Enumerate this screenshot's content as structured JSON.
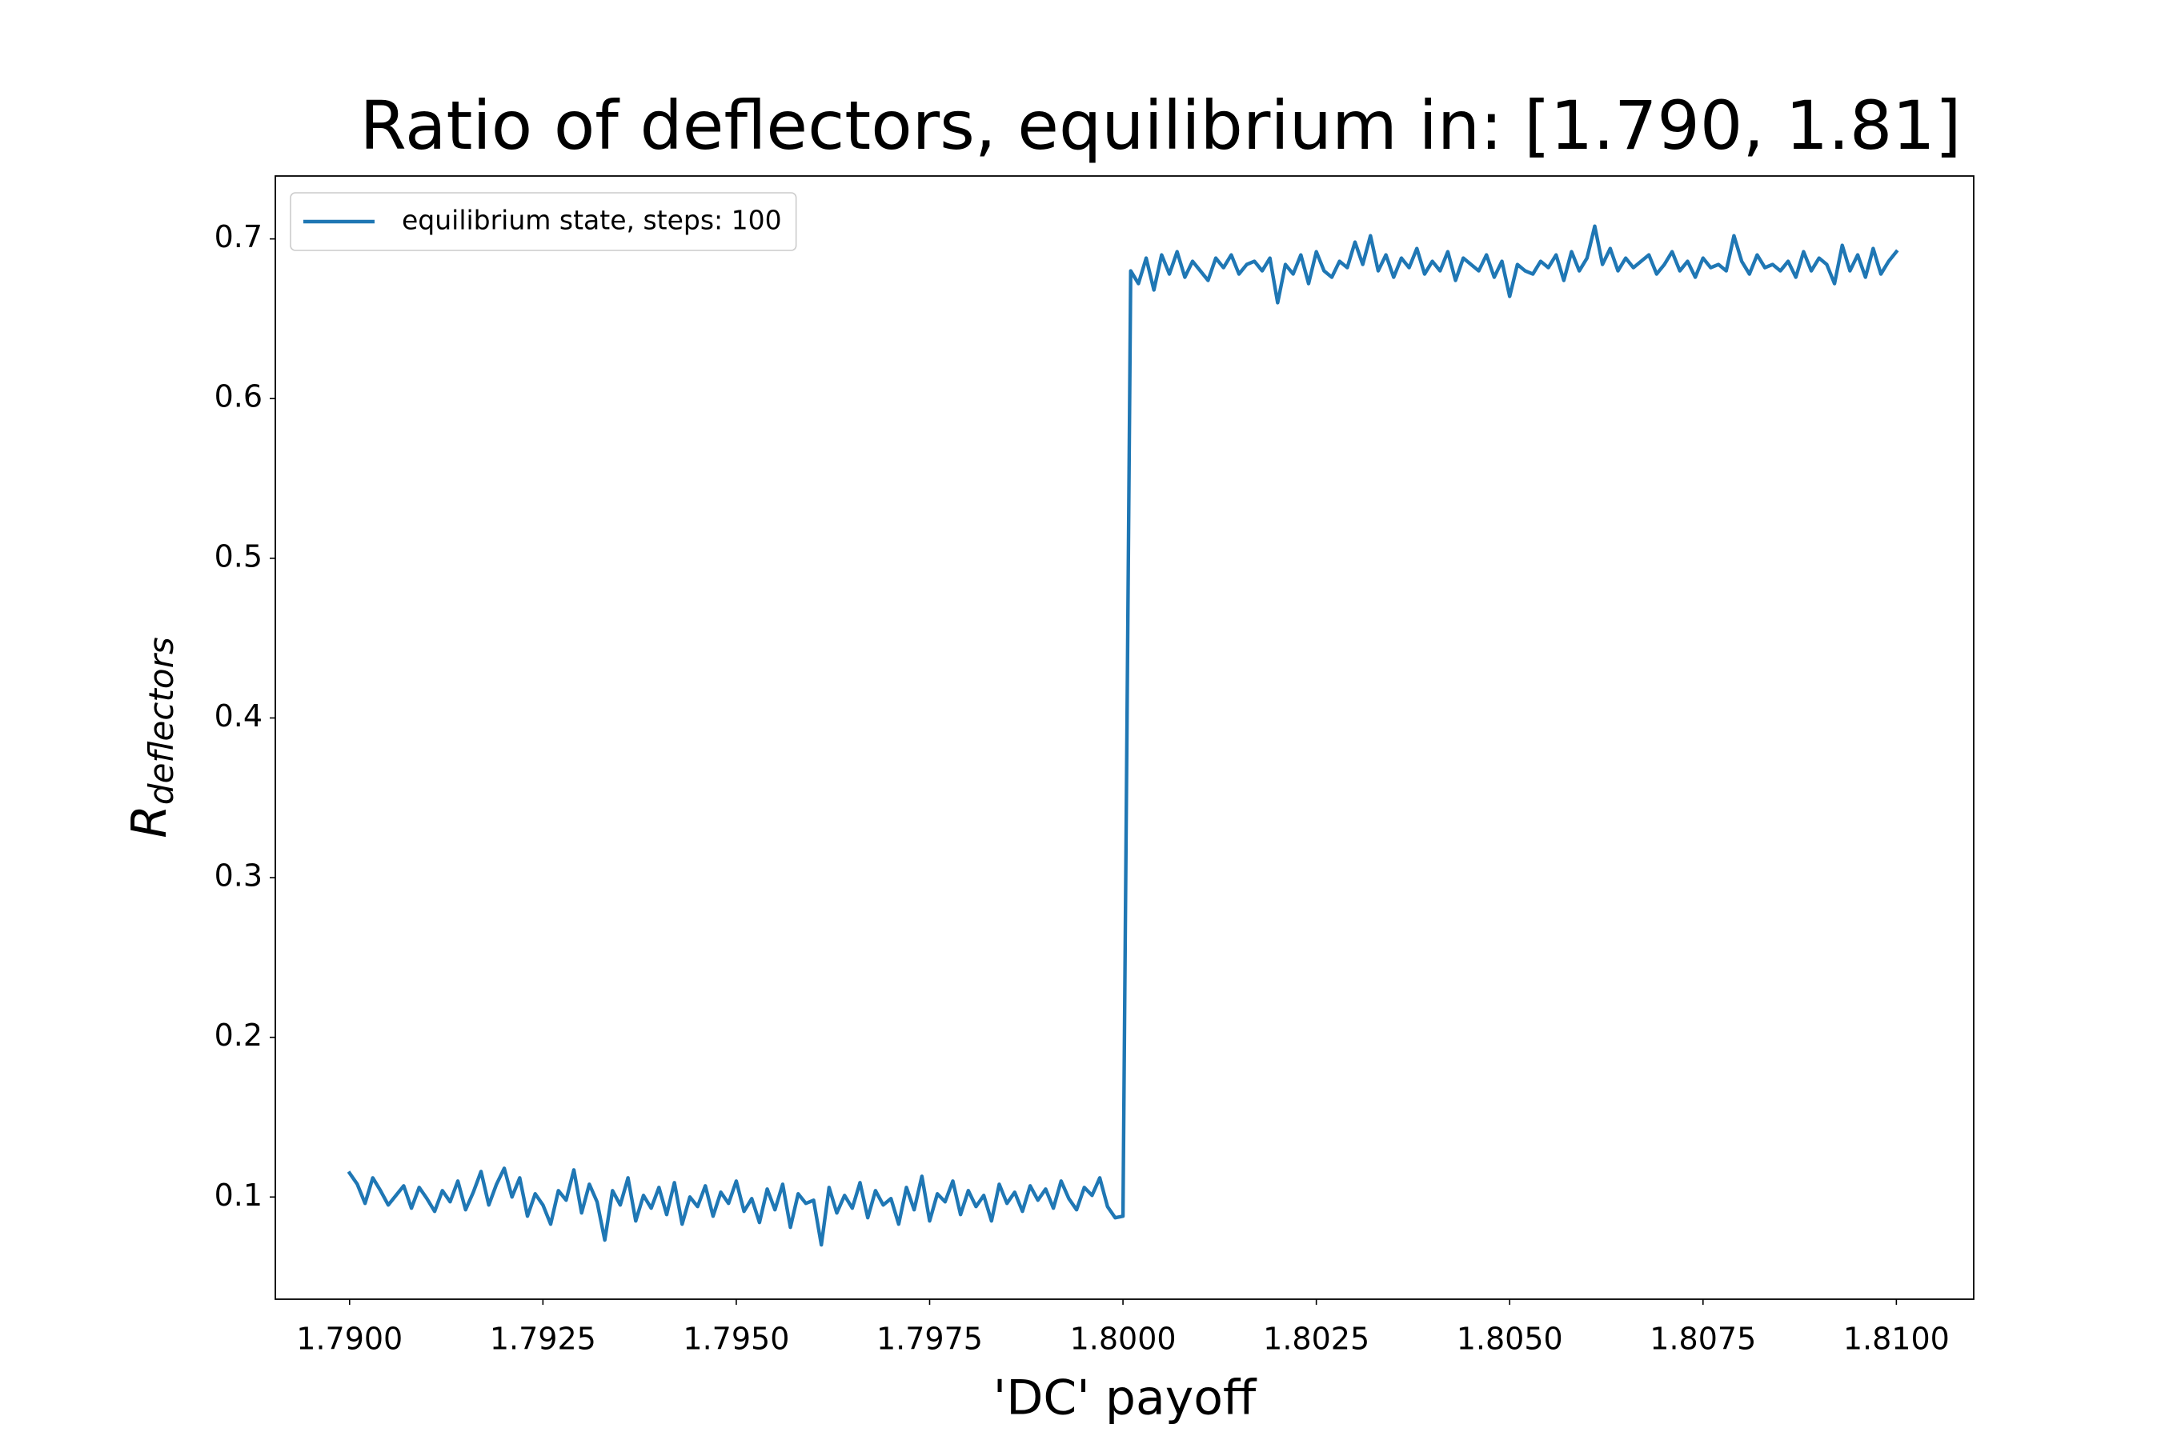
{
  "chart_data": {
    "type": "line",
    "title": "Ratio of deflectors, equilibrium in: [1.790, 1.81]",
    "xlabel": "'DC' payoff",
    "ylabel": "R",
    "ylabel_subscript": "deflectors",
    "legend": "upper left",
    "grid": false,
    "x": [
      1.79,
      1.7901,
      1.7902,
      1.7903,
      1.7904,
      1.7905,
      1.7906,
      1.7907,
      1.7908,
      1.7909,
      1.791,
      1.7911,
      1.7912,
      1.7913,
      1.7914,
      1.7915,
      1.7916,
      1.7917,
      1.7918,
      1.7919,
      1.792,
      1.7921,
      1.7922,
      1.7923,
      1.7924,
      1.7925,
      1.7926,
      1.7927,
      1.7928,
      1.7929,
      1.793,
      1.7931,
      1.7932,
      1.7933,
      1.7934,
      1.7935,
      1.7936,
      1.7937,
      1.7938,
      1.7939,
      1.794,
      1.7941,
      1.7942,
      1.7943,
      1.7944,
      1.7945,
      1.7946,
      1.7947,
      1.7948,
      1.7949,
      1.795,
      1.7951,
      1.7952,
      1.7953,
      1.7954,
      1.7955,
      1.7956,
      1.7957,
      1.7958,
      1.7959,
      1.796,
      1.7961,
      1.7962,
      1.7963,
      1.7964,
      1.7965,
      1.7966,
      1.7967,
      1.7968,
      1.7969,
      1.797,
      1.7971,
      1.7972,
      1.7973,
      1.7974,
      1.7975,
      1.7976,
      1.7977,
      1.7978,
      1.7979,
      1.798,
      1.7981,
      1.7982,
      1.7983,
      1.7984,
      1.7985,
      1.7986,
      1.7987,
      1.7988,
      1.7989,
      1.799,
      1.7991,
      1.7992,
      1.7993,
      1.7994,
      1.7995,
      1.7996,
      1.7997,
      1.7998,
      1.7999,
      1.8,
      1.8001,
      1.8002,
      1.8003,
      1.8004,
      1.8005,
      1.8006,
      1.8007,
      1.8008,
      1.8009,
      1.801,
      1.8011,
      1.8012,
      1.8013,
      1.8014,
      1.8015,
      1.8016,
      1.8017,
      1.8018,
      1.8019,
      1.802,
      1.8021,
      1.8022,
      1.8023,
      1.8024,
      1.8025,
      1.8026,
      1.8027,
      1.8028,
      1.8029,
      1.803,
      1.8031,
      1.8032,
      1.8033,
      1.8034,
      1.8035,
      1.8036,
      1.8037,
      1.8038,
      1.8039,
      1.804,
      1.8041,
      1.8042,
      1.8043,
      1.8044,
      1.8045,
      1.8046,
      1.8047,
      1.8048,
      1.8049,
      1.805,
      1.8051,
      1.8052,
      1.8053,
      1.8054,
      1.8055,
      1.8056,
      1.8057,
      1.8058,
      1.8059,
      1.806,
      1.8061,
      1.8062,
      1.8063,
      1.8064,
      1.8065,
      1.8066,
      1.8067,
      1.8068,
      1.8069,
      1.807,
      1.8071,
      1.8072,
      1.8073,
      1.8074,
      1.8075,
      1.8076,
      1.8077,
      1.8078,
      1.8079,
      1.808,
      1.8081,
      1.8082,
      1.8083,
      1.8084,
      1.8085,
      1.8086,
      1.8087,
      1.8088,
      1.8089,
      1.809,
      1.8091,
      1.8092,
      1.8093,
      1.8094,
      1.8095,
      1.8096,
      1.8097,
      1.8098,
      1.8099,
      1.81
    ],
    "series": [
      {
        "name": "equilibrium state, steps: 100",
        "color": "#1f77b4",
        "values": [
          0.115,
          0.108,
          0.096,
          0.112,
          0.104,
          0.095,
          0.101,
          0.107,
          0.093,
          0.106,
          0.099,
          0.091,
          0.104,
          0.097,
          0.11,
          0.092,
          0.103,
          0.116,
          0.095,
          0.108,
          0.118,
          0.1,
          0.112,
          0.088,
          0.102,
          0.095,
          0.083,
          0.104,
          0.098,
          0.117,
          0.09,
          0.108,
          0.097,
          0.073,
          0.104,
          0.095,
          0.112,
          0.085,
          0.101,
          0.093,
          0.106,
          0.089,
          0.109,
          0.083,
          0.1,
          0.094,
          0.107,
          0.088,
          0.103,
          0.096,
          0.11,
          0.091,
          0.099,
          0.084,
          0.105,
          0.092,
          0.108,
          0.081,
          0.102,
          0.096,
          0.098,
          0.07,
          0.106,
          0.09,
          0.101,
          0.093,
          0.109,
          0.087,
          0.104,
          0.095,
          0.099,
          0.083,
          0.106,
          0.092,
          0.113,
          0.085,
          0.102,
          0.097,
          0.11,
          0.089,
          0.104,
          0.094,
          0.101,
          0.085,
          0.108,
          0.096,
          0.103,
          0.091,
          0.107,
          0.098,
          0.105,
          0.093,
          0.11,
          0.099,
          0.092,
          0.106,
          0.101,
          0.112,
          0.094,
          0.087,
          0.088,
          0.68,
          0.672,
          0.688,
          0.668,
          0.69,
          0.678,
          0.692,
          0.676,
          0.686,
          0.68,
          0.674,
          0.688,
          0.682,
          0.69,
          0.678,
          0.684,
          0.686,
          0.68,
          0.688,
          0.66,
          0.684,
          0.678,
          0.69,
          0.672,
          0.692,
          0.68,
          0.676,
          0.686,
          0.682,
          0.698,
          0.684,
          0.702,
          0.68,
          0.69,
          0.676,
          0.688,
          0.682,
          0.694,
          0.678,
          0.686,
          0.68,
          0.692,
          0.674,
          0.688,
          0.684,
          0.68,
          0.69,
          0.676,
          0.686,
          0.664,
          0.684,
          0.68,
          0.678,
          0.686,
          0.682,
          0.69,
          0.674,
          0.692,
          0.68,
          0.688,
          0.708,
          0.684,
          0.694,
          0.68,
          0.688,
          0.682,
          0.686,
          0.69,
          0.678,
          0.684,
          0.692,
          0.68,
          0.686,
          0.676,
          0.688,
          0.682,
          0.684,
          0.68,
          0.702,
          0.686,
          0.678,
          0.69,
          0.682,
          0.684,
          0.68,
          0.686,
          0.676,
          0.692,
          0.68,
          0.688,
          0.684,
          0.672,
          0.696,
          0.68,
          0.69,
          0.676,
          0.694,
          0.678,
          0.686,
          0.692
        ]
      }
    ],
    "xlim": [
      1.78904,
      1.811
    ],
    "ylim": [
      0.036,
      0.7394
    ],
    "xticks": [
      {
        "value": 1.79,
        "label": "1.7900"
      },
      {
        "value": 1.7925,
        "label": "1.7925"
      },
      {
        "value": 1.795,
        "label": "1.7950"
      },
      {
        "value": 1.7975,
        "label": "1.7975"
      },
      {
        "value": 1.8,
        "label": "1.8000"
      },
      {
        "value": 1.8025,
        "label": "1.8025"
      },
      {
        "value": 1.805,
        "label": "1.8050"
      },
      {
        "value": 1.8075,
        "label": "1.8075"
      },
      {
        "value": 1.81,
        "label": "1.8100"
      }
    ],
    "yticks": [
      0.1,
      0.2,
      0.3,
      0.4,
      0.5,
      0.6,
      0.7
    ]
  }
}
